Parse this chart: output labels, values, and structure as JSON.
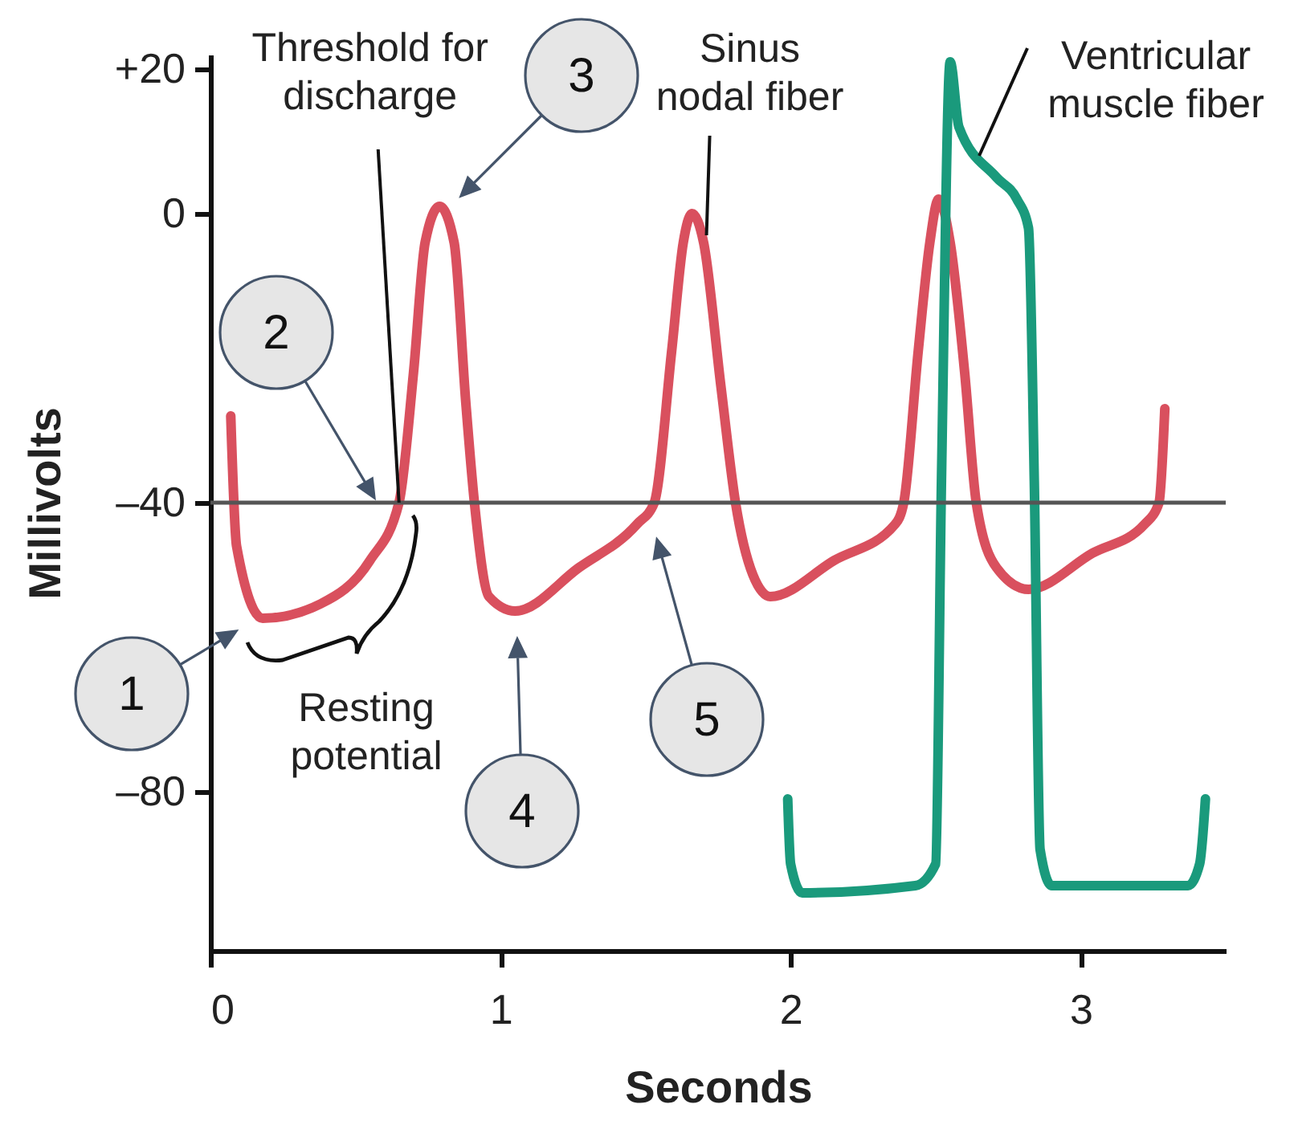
{
  "chart_data": {
    "type": "line",
    "xlabel": "Seconds",
    "ylabel": "Millivolts",
    "xlim": [
      0,
      3.5
    ],
    "ylim": [
      -102,
      22
    ],
    "xticks": [
      0,
      1,
      2,
      3
    ],
    "yticks": [
      {
        "value": 20,
        "label": "+20"
      },
      0,
      {
        "value": -40,
        "label": "–40"
      },
      {
        "value": -80,
        "label": "–80"
      }
    ],
    "grid": false,
    "legend": false,
    "marker": "none",
    "line_style": "solid",
    "ref_lines": [
      {
        "axis": "y",
        "value": -40,
        "color": "#555555"
      }
    ],
    "annotations": [
      {
        "text": "Threshold for discharge",
        "x": 0.65,
        "y": -40
      },
      "Resting potential",
      "1",
      "2",
      "3",
      "4",
      "5"
    ],
    "series": [
      {
        "name": "Sinus nodal fiber",
        "color": "#d9505e",
        "x": [
          0.07,
          0.09,
          0.18,
          0.38,
          0.55,
          0.65,
          0.7,
          0.74,
          0.79,
          0.84,
          0.88,
          0.91,
          0.96,
          1.05,
          1.27,
          1.47,
          1.53,
          1.59,
          1.63,
          1.66,
          1.7,
          1.76,
          1.81,
          1.87,
          1.93,
          2.15,
          2.36,
          2.39,
          2.44,
          2.48,
          2.51,
          2.55,
          2.6,
          2.64,
          2.71,
          2.82,
          3.04,
          3.22,
          3.27,
          3.29
        ],
        "values": [
          -28,
          -46,
          -56,
          -54,
          -48,
          -40,
          -22,
          -4,
          1,
          -4,
          -26,
          -40,
          -53,
          -55,
          -49,
          -43,
          -40,
          -19,
          -4,
          0,
          -4,
          -24,
          -40,
          -50,
          -53,
          -48,
          -43,
          -40,
          -19,
          -4,
          2,
          -4,
          -22,
          -40,
          -49,
          -52,
          -47,
          -43,
          -40,
          -27
        ]
      },
      {
        "name": "Ventricular muscle fiber",
        "color": "#1a9a7c",
        "x": [
          1.99,
          2.0,
          2.04,
          2.43,
          2.5,
          2.52,
          2.55,
          2.58,
          2.71,
          2.78,
          2.82,
          2.84,
          2.86,
          2.9,
          3.37,
          3.41,
          3.43
        ],
        "values": [
          -81,
          -90,
          -94,
          -93,
          -90,
          -37,
          21,
          12,
          5,
          2,
          -2,
          -37,
          -88,
          -93,
          -93,
          -90,
          -81
        ]
      }
    ]
  }
}
